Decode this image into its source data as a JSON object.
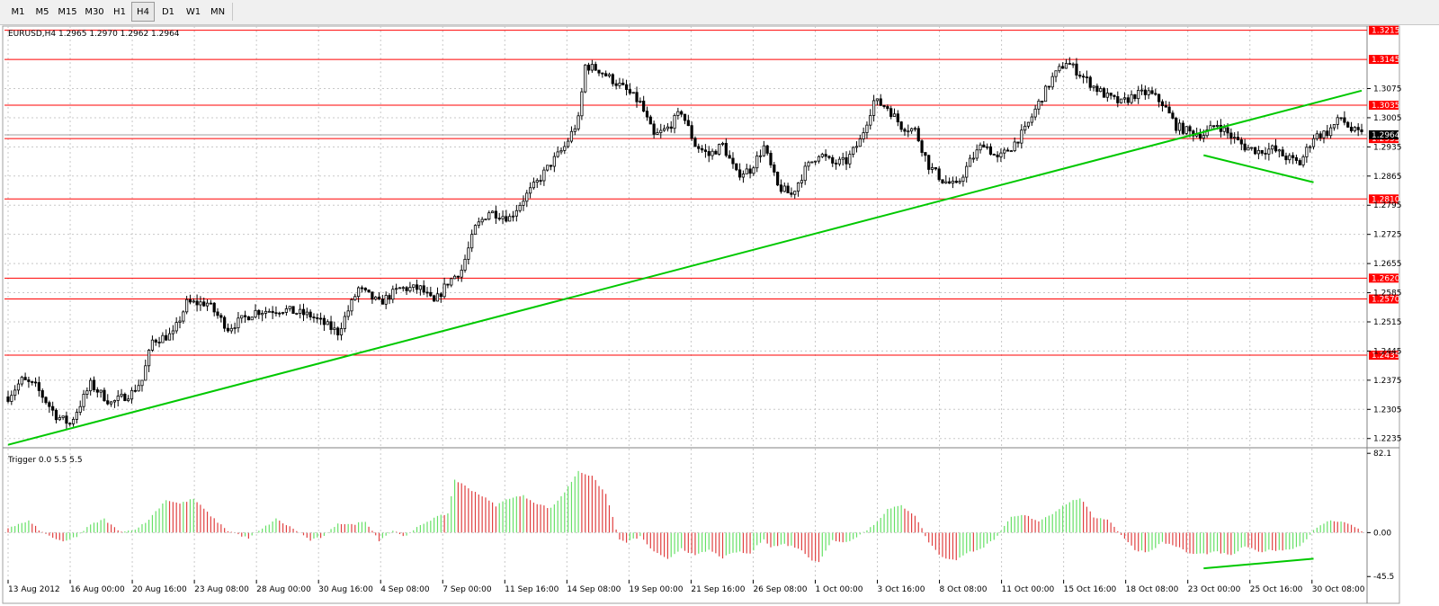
{
  "toolbar": {
    "timeframes": [
      "M1",
      "M5",
      "M15",
      "M30",
      "H1",
      "H4",
      "D1",
      "W1",
      "MN"
    ],
    "active": "H4"
  },
  "colors": {
    "background": "#ffffff",
    "grid": "#c8c8c8",
    "candle": "#000000",
    "hline": "#ff0000",
    "label_bg": "#ff0000",
    "label_text": "#ffffff",
    "trendline": "#00c800",
    "hist_up": "#66e066",
    "hist_down": "#e04040"
  },
  "chart_data": [
    {
      "type": "candlestick",
      "title": "EURUSD,H4  1.2965 1.2970 1.2962 1.2964",
      "ylim": [
        1.2215,
        1.3225
      ],
      "grid": true,
      "y_ticks": [
        "1.2235",
        "1.2305",
        "1.2375",
        "1.2445",
        "1.2515",
        "1.2585",
        "1.2655",
        "1.2725",
        "1.2795",
        "1.2865",
        "1.2935",
        "1.3005",
        "1.3075"
      ],
      "x_ticks": [
        "13 Aug 2012",
        "16 Aug 00:00",
        "20 Aug 16:00",
        "23 Aug 08:00",
        "28 Aug 00:00",
        "30 Aug 16:00",
        "4 Sep 08:00",
        "7 Sep 00:00",
        "11 Sep 16:00",
        "14 Sep 08:00",
        "19 Sep 00:00",
        "21 Sep 16:00",
        "26 Sep 08:00",
        "1 Oct 00:00",
        "3 Oct 16:00",
        "8 Oct 08:00",
        "11 Oct 00:00",
        "15 Oct 16:00",
        "18 Oct 08:00",
        "23 Oct 00:00",
        "25 Oct 16:00",
        "30 Oct 08:00"
      ],
      "close_path": [
        [
          0,
          1.2335
        ],
        [
          4,
          1.2375
        ],
        [
          8,
          1.236
        ],
        [
          14,
          1.229
        ],
        [
          18,
          1.227
        ],
        [
          24,
          1.2365
        ],
        [
          30,
          1.232
        ],
        [
          36,
          1.2345
        ],
        [
          39,
          1.2375
        ],
        [
          42,
          1.247
        ],
        [
          48,
          1.2485
        ],
        [
          52,
          1.256
        ],
        [
          58,
          1.256
        ],
        [
          64,
          1.25
        ],
        [
          72,
          1.254
        ],
        [
          80,
          1.2545
        ],
        [
          88,
          1.253
        ],
        [
          96,
          1.249
        ],
        [
          102,
          1.2595
        ],
        [
          108,
          1.256
        ],
        [
          114,
          1.2595
        ],
        [
          120,
          1.2595
        ],
        [
          124,
          1.256
        ],
        [
          128,
          1.261
        ],
        [
          132,
          1.264
        ],
        [
          136,
          1.274
        ],
        [
          140,
          1.278
        ],
        [
          146,
          1.2765
        ],
        [
          150,
          1.281
        ],
        [
          154,
          1.285
        ],
        [
          158,
          1.2895
        ],
        [
          162,
          1.2935
        ],
        [
          166,
          1.3
        ],
        [
          168,
          1.313
        ],
        [
          172,
          1.312
        ],
        [
          176,
          1.3095
        ],
        [
          180,
          1.307
        ],
        [
          184,
          1.304
        ],
        [
          188,
          1.296
        ],
        [
          192,
          1.298
        ],
        [
          196,
          1.302
        ],
        [
          200,
          1.294
        ],
        [
          204,
          1.2915
        ],
        [
          208,
          1.294
        ],
        [
          212,
          1.287
        ],
        [
          216,
          1.288
        ],
        [
          220,
          1.2935
        ],
        [
          224,
          1.284
        ],
        [
          228,
          1.282
        ],
        [
          232,
          1.288
        ],
        [
          236,
          1.292
        ],
        [
          240,
          1.2895
        ],
        [
          244,
          1.29
        ],
        [
          248,
          1.295
        ],
        [
          252,
          1.3045
        ],
        [
          256,
          1.303
        ],
        [
          260,
          1.2985
        ],
        [
          264,
          1.2975
        ],
        [
          268,
          1.289
        ],
        [
          272,
          1.2855
        ],
        [
          276,
          1.284
        ],
        [
          280,
          1.29
        ],
        [
          284,
          1.2945
        ],
        [
          288,
          1.2905
        ],
        [
          292,
          1.2935
        ],
        [
          296,
          1.2975
        ],
        [
          300,
          1.304
        ],
        [
          304,
          1.31
        ],
        [
          308,
          1.314
        ],
        [
          312,
          1.311
        ],
        [
          316,
          1.308
        ],
        [
          320,
          1.3055
        ],
        [
          324,
          1.304
        ],
        [
          328,
          1.306
        ],
        [
          332,
          1.3065
        ],
        [
          336,
          1.304
        ],
        [
          340,
          1.2985
        ],
        [
          344,
          1.297
        ],
        [
          348,
          1.2965
        ],
        [
          352,
          1.299
        ],
        [
          356,
          1.296
        ],
        [
          360,
          1.2935
        ],
        [
          364,
          1.2925
        ],
        [
          368,
          1.293
        ],
        [
          372,
          1.291
        ],
        [
          376,
          1.2895
        ],
        [
          380,
          1.296
        ],
        [
          384,
          1.297
        ],
        [
          388,
          1.3005
        ],
        [
          391,
          1.2975
        ],
        [
          394,
          1.2964
        ]
      ],
      "n_bars": 395,
      "horizontal_levels": [
        "1.3215",
        "1.3145",
        "1.3035",
        "1.2955",
        "1.2810",
        "1.2620",
        "1.2570",
        "1.2435"
      ],
      "current_price": "1.2964",
      "trendlines": [
        {
          "from": [
            0,
            1.222
          ],
          "to": [
            394,
            1.307
          ]
        },
        {
          "from": [
            348,
            1.2915
          ],
          "to": [
            380,
            1.285
          ]
        }
      ]
    },
    {
      "type": "histogram",
      "title": "Trigger 0.0 5.5 5.5",
      "ylim": [
        -49,
        86
      ],
      "y_ticks": [
        "82.1",
        "0.00",
        "-45.5"
      ],
      "zero_line": 0,
      "value_path": [
        [
          0,
          5
        ],
        [
          6,
          12
        ],
        [
          10,
          0
        ],
        [
          16,
          -10
        ],
        [
          20,
          -4
        ],
        [
          24,
          8
        ],
        [
          28,
          14
        ],
        [
          32,
          2
        ],
        [
          36,
          2
        ],
        [
          40,
          10
        ],
        [
          42,
          18
        ],
        [
          46,
          34
        ],
        [
          50,
          30
        ],
        [
          54,
          35
        ],
        [
          60,
          14
        ],
        [
          64,
          2
        ],
        [
          70,
          -6
        ],
        [
          74,
          4
        ],
        [
          78,
          14
        ],
        [
          84,
          2
        ],
        [
          88,
          -8
        ],
        [
          92,
          -4
        ],
        [
          96,
          10
        ],
        [
          100,
          8
        ],
        [
          104,
          12
        ],
        [
          108,
          -8
        ],
        [
          112,
          2
        ],
        [
          116,
          -4
        ],
        [
          120,
          8
        ],
        [
          124,
          15
        ],
        [
          128,
          20
        ],
        [
          130,
          55
        ],
        [
          134,
          46
        ],
        [
          138,
          38
        ],
        [
          142,
          28
        ],
        [
          146,
          36
        ],
        [
          150,
          38
        ],
        [
          154,
          30
        ],
        [
          158,
          25
        ],
        [
          162,
          42
        ],
        [
          166,
          64
        ],
        [
          170,
          58
        ],
        [
          174,
          40
        ],
        [
          178,
          -8
        ],
        [
          180,
          -10
        ],
        [
          184,
          -4
        ],
        [
          188,
          -20
        ],
        [
          192,
          -28
        ],
        [
          196,
          -16
        ],
        [
          200,
          -24
        ],
        [
          204,
          -18
        ],
        [
          208,
          -26
        ],
        [
          212,
          -20
        ],
        [
          216,
          -22
        ],
        [
          220,
          -6
        ],
        [
          222,
          -15
        ],
        [
          226,
          -12
        ],
        [
          230,
          -16
        ],
        [
          234,
          -28
        ],
        [
          236,
          -30
        ],
        [
          240,
          -8
        ],
        [
          244,
          -10
        ],
        [
          248,
          -2
        ],
        [
          252,
          8
        ],
        [
          256,
          24
        ],
        [
          260,
          28
        ],
        [
          264,
          18
        ],
        [
          268,
          -10
        ],
        [
          272,
          -26
        ],
        [
          276,
          -28
        ],
        [
          280,
          -20
        ],
        [
          284,
          -15
        ],
        [
          288,
          -4
        ],
        [
          292,
          16
        ],
        [
          296,
          18
        ],
        [
          300,
          12
        ],
        [
          304,
          20
        ],
        [
          308,
          30
        ],
        [
          312,
          36
        ],
        [
          316,
          16
        ],
        [
          320,
          14
        ],
        [
          324,
          -2
        ],
        [
          328,
          -18
        ],
        [
          332,
          -20
        ],
        [
          336,
          -10
        ],
        [
          340,
          -14
        ],
        [
          344,
          -22
        ],
        [
          348,
          -22
        ],
        [
          352,
          -20
        ],
        [
          356,
          -24
        ],
        [
          360,
          -14
        ],
        [
          364,
          -20
        ],
        [
          368,
          -18
        ],
        [
          372,
          -18
        ],
        [
          376,
          -14
        ],
        [
          380,
          2
        ],
        [
          384,
          12
        ],
        [
          388,
          12
        ],
        [
          392,
          6
        ],
        [
          394,
          2
        ]
      ],
      "trendlines": [
        {
          "from": [
            348,
            -37
          ],
          "to": [
            380,
            -27
          ]
        }
      ]
    }
  ]
}
